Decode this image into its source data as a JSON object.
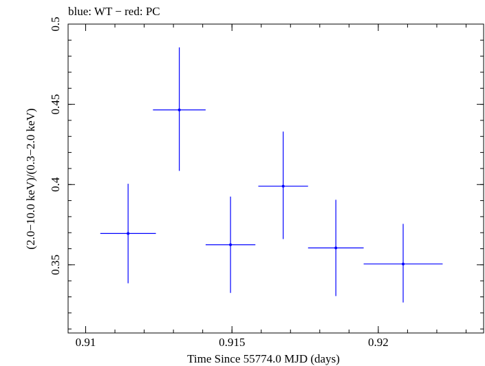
{
  "chart_data": {
    "type": "scatter",
    "title": "blue: WT − red: PC",
    "xlabel": "Time Since 55774.0 MJD (days)",
    "ylabel": "(2.0−10.0 keV)/(0.3−2.0 keV)",
    "xlim": [
      0.9094,
      0.9236
    ],
    "ylim": [
      0.3075,
      0.5
    ],
    "xticks": [
      0.91,
      0.915,
      0.92
    ],
    "xtick_labels": [
      "0.91",
      "0.915",
      "0.92"
    ],
    "yticks": [
      0.35,
      0.4,
      0.45,
      0.5
    ],
    "ytick_labels": [
      "0.35",
      "0.4",
      "0.45",
      "0.5"
    ],
    "x_minor_step": 0.001,
    "y_minor_step": 0.01,
    "grid": false,
    "series": [
      {
        "name": "WT",
        "color": "#0000ff",
        "points": [
          {
            "x": 0.91145,
            "xerr_low": 0.00095,
            "xerr_high": 0.00095,
            "y": 0.3695,
            "yerr_low": 0.031,
            "yerr_high": 0.031
          },
          {
            "x": 0.9132,
            "xerr_low": 0.0009,
            "xerr_high": 0.0009,
            "y": 0.4465,
            "yerr_low": 0.038,
            "yerr_high": 0.039
          },
          {
            "x": 0.91495,
            "xerr_low": 0.00085,
            "xerr_high": 0.00085,
            "y": 0.3625,
            "yerr_low": 0.03,
            "yerr_high": 0.03
          },
          {
            "x": 0.91675,
            "xerr_low": 0.00085,
            "xerr_high": 0.00085,
            "y": 0.399,
            "yerr_low": 0.033,
            "yerr_high": 0.034
          },
          {
            "x": 0.91855,
            "xerr_low": 0.00095,
            "xerr_high": 0.00095,
            "y": 0.3605,
            "yerr_low": 0.03,
            "yerr_high": 0.03
          },
          {
            "x": 0.92085,
            "xerr_low": 0.00135,
            "xerr_high": 0.00135,
            "y": 0.3505,
            "yerr_low": 0.024,
            "yerr_high": 0.025
          }
        ]
      }
    ]
  }
}
